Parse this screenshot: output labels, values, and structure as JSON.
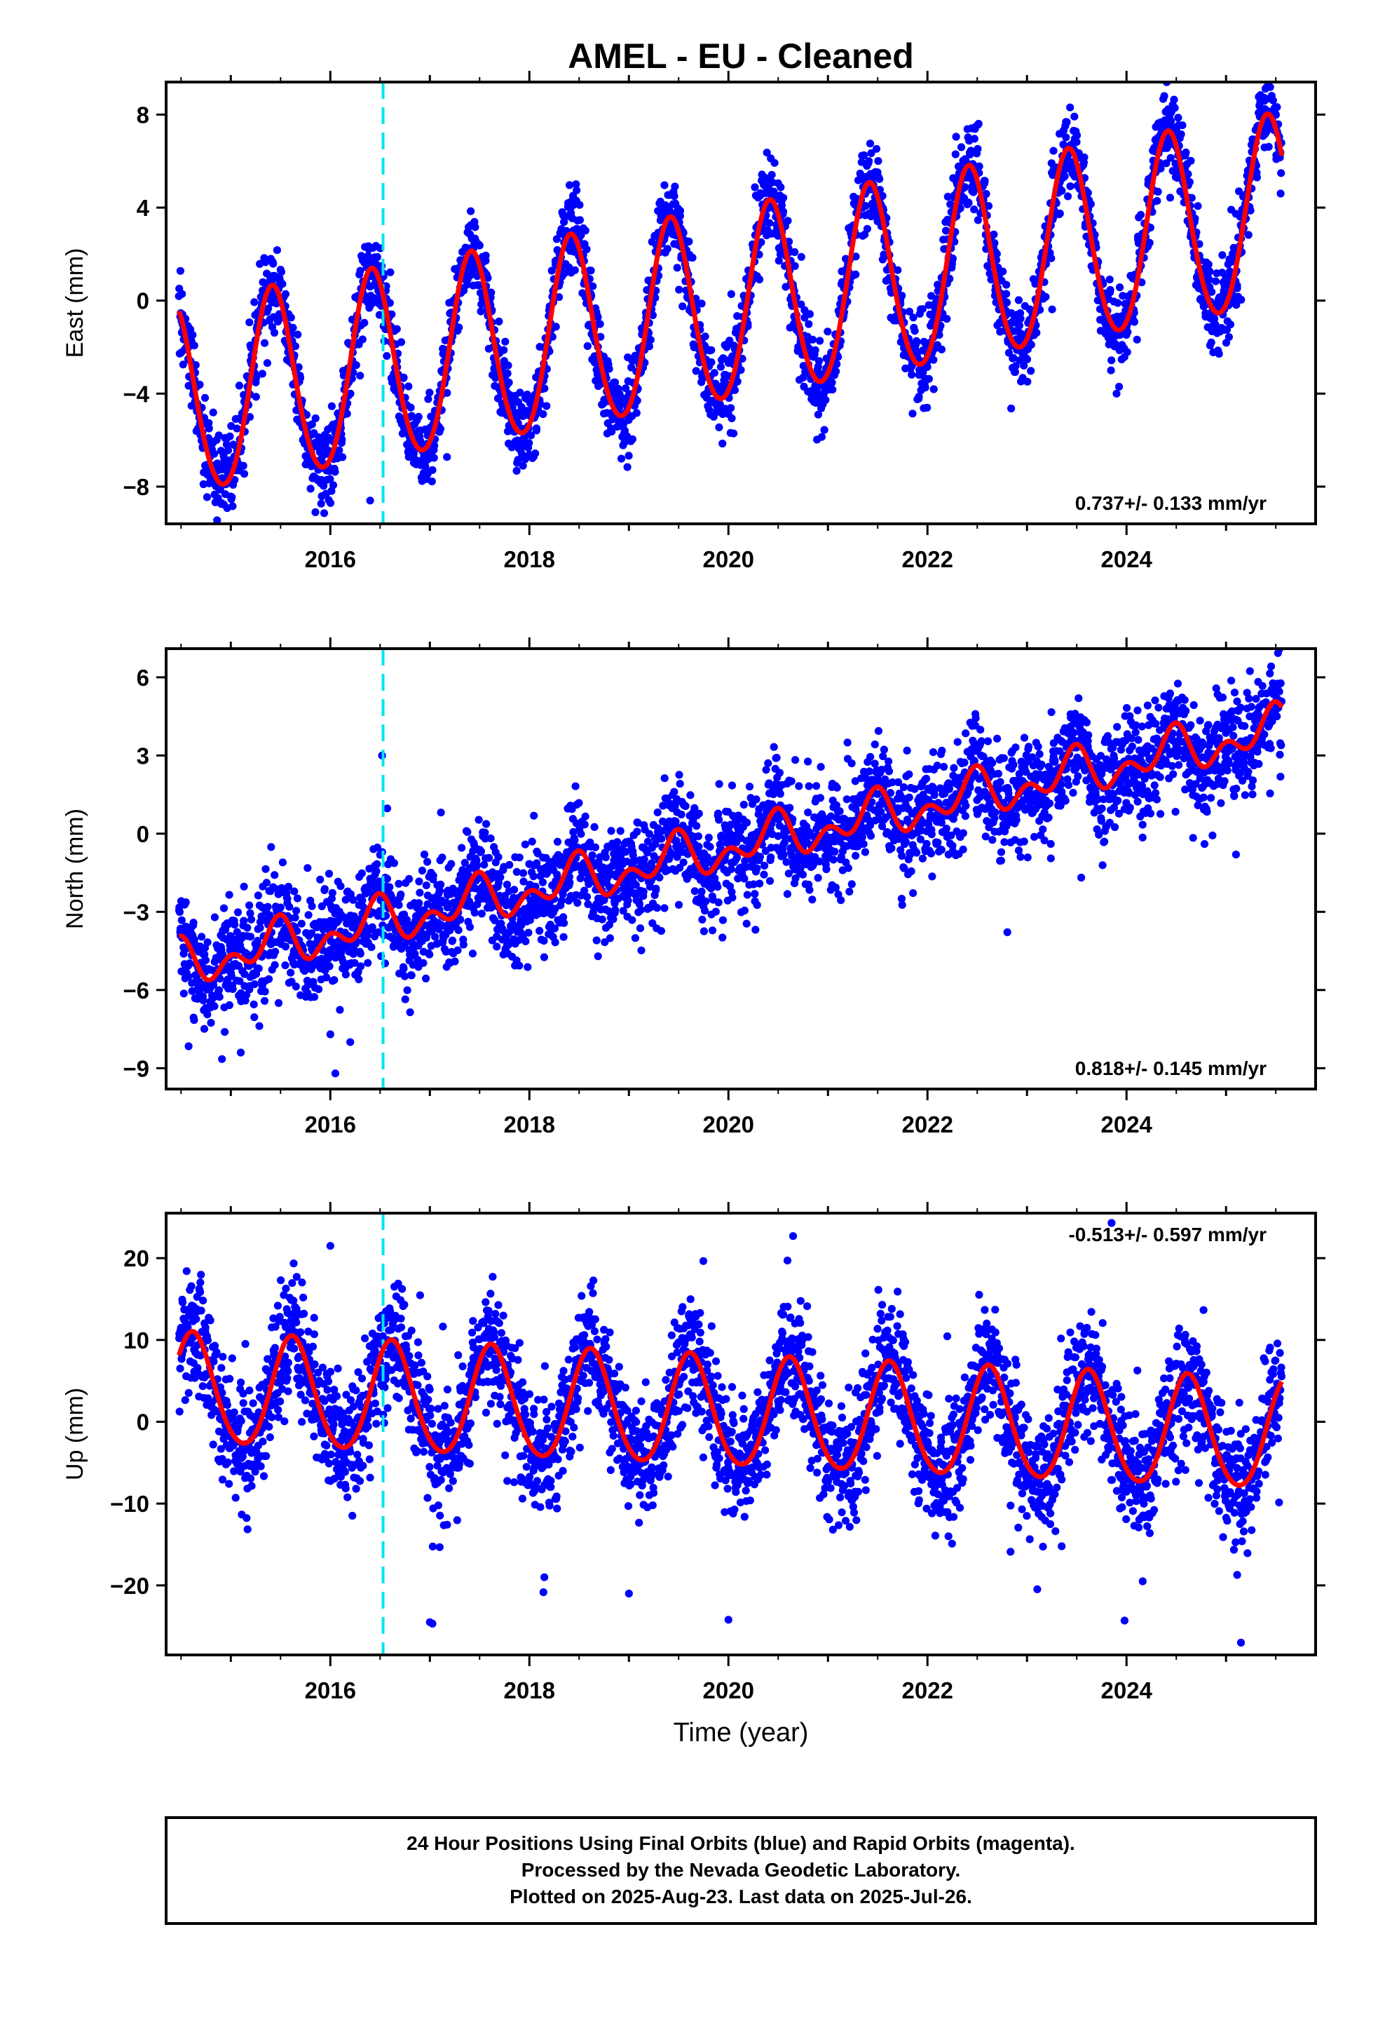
{
  "chart_data": [
    {
      "type": "scatter",
      "component": "East",
      "title": "AMEL  - EU - Cleaned",
      "ylabel": "East (mm)",
      "xlabel": "",
      "xlim": [
        2014.35,
        2025.9
      ],
      "ylim": [
        -9.6,
        9.4
      ],
      "yticks": [
        -8,
        -4,
        0,
        4,
        8
      ],
      "xticks": [
        2016,
        2018,
        2020,
        2022,
        2024
      ],
      "rate_text": "0.737+/- 0.133 mm/yr",
      "rate_position": "bottom-right",
      "equipment_change_epoch": 2016.53,
      "model": {
        "description": "fitted trend + annual + semiannual",
        "t0": 2020.0,
        "intercept": -0.35,
        "slope": 0.737,
        "annual_amp": 4.1,
        "annual_peak_frac": 0.42,
        "semiannual_amp": 0.3,
        "semiannual_peak_frac": 0.4,
        "t_start": 2014.48,
        "t_end": 2025.56
      },
      "scatter_noise": 0.9,
      "points_per_year": 300,
      "outliers": [
        [
          2015.85,
          -9.1
        ],
        [
          2016.4,
          -8.6
        ],
        [
          2023.9,
          -4.0
        ],
        [
          2018.4,
          2.6
        ]
      ],
      "series": [
        {
          "name": "Final Orbits",
          "color": "#0000ff"
        },
        {
          "name": "fit",
          "color": "#ff0000"
        }
      ]
    },
    {
      "type": "scatter",
      "component": "North",
      "title": "",
      "ylabel": "North (mm)",
      "xlabel": "",
      "xlim": [
        2014.35,
        2025.9
      ],
      "ylim": [
        -9.8,
        7.1
      ],
      "yticks": [
        -9,
        -6,
        -3,
        0,
        3,
        6
      ],
      "xticks": [
        2016,
        2018,
        2020,
        2022,
        2024
      ],
      "rate_text": "0.818+/- 0.145 mm/yr",
      "rate_position": "bottom-right",
      "equipment_change_epoch": 2016.53,
      "model": {
        "description": "fitted trend + annual + semiannual",
        "t0": 2020.0,
        "intercept": -0.55,
        "slope": 0.818,
        "annual_amp": 0.6,
        "annual_peak_frac": 0.45,
        "semiannual_amp": 0.55,
        "semiannual_peak_frac": 0.5,
        "t_start": 2014.48,
        "t_end": 2025.56
      },
      "scatter_noise": 1.0,
      "points_per_year": 300,
      "outliers": [
        [
          2016.05,
          -9.2
        ],
        [
          2016.0,
          -7.7
        ],
        [
          2016.2,
          -8.0
        ],
        [
          2016.52,
          3.0
        ],
        [
          2025.1,
          -0.8
        ],
        [
          2015.1,
          -8.4
        ]
      ],
      "series": [
        {
          "name": "Final Orbits",
          "color": "#0000ff"
        },
        {
          "name": "fit",
          "color": "#ff0000"
        }
      ]
    },
    {
      "type": "scatter",
      "component": "Up",
      "title": "",
      "ylabel": "Up (mm)",
      "xlabel": "Time (year)",
      "xlim": [
        2014.35,
        2025.9
      ],
      "ylim": [
        -28.5,
        25.5
      ],
      "yticks": [
        -20,
        -10,
        0,
        10,
        20
      ],
      "xticks": [
        2016,
        2018,
        2020,
        2022,
        2024
      ],
      "rate_text": "-0.513+/- 0.597 mm/yr",
      "rate_position": "top-right",
      "equipment_change_epoch": 2016.53,
      "model": {
        "description": "fitted trend + annual + semiannual",
        "t0": 2020.0,
        "intercept": 1.0,
        "slope": -0.513,
        "annual_amp": 6.7,
        "annual_peak_frac": 0.62,
        "semiannual_amp": 0.6,
        "semiannual_peak_frac": 0.1,
        "t_start": 2014.48,
        "t_end": 2025.56
      },
      "scatter_noise": 3.6,
      "points_per_year": 300,
      "outliers": [
        [
          2016.0,
          21.5
        ],
        [
          2020.65,
          22.7
        ],
        [
          2023.85,
          24.3
        ],
        [
          2017.0,
          -24.5
        ],
        [
          2025.15,
          -27.0
        ],
        [
          2023.98,
          -24.3
        ],
        [
          2020.0,
          -24.2
        ],
        [
          2019.0,
          -21.0
        ],
        [
          2018.15,
          -19.0
        ]
      ],
      "series": [
        {
          "name": "Final Orbits",
          "color": "#0000ff"
        },
        {
          "name": "fit",
          "color": "#ff0000"
        }
      ]
    }
  ],
  "footer": {
    "line1": "24 Hour Positions Using Final Orbits (blue) and Rapid Orbits (magenta).",
    "line2": "Processed by the Nevada Geodetic Laboratory.",
    "line3": "Plotted on 2025-Aug-23. Last data on 2025-Jul-26."
  },
  "colors": {
    "points": "#0000ff",
    "fit": "#ff0000",
    "equipment_change": "#00e5ee",
    "frame": "#000000"
  }
}
